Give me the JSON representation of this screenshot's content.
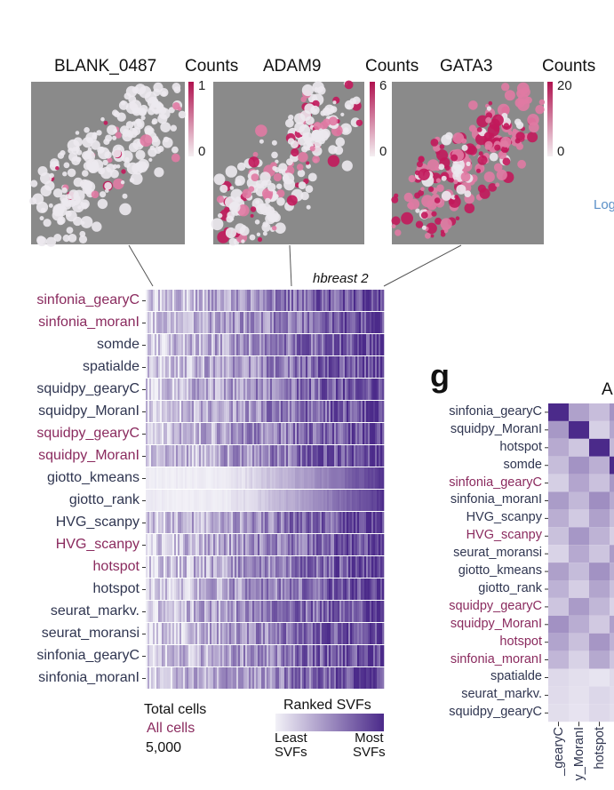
{
  "spatial_panels": [
    {
      "gene": "BLANK_0487",
      "legend_title": "Counts",
      "legend_max": "1",
      "legend_min": "0",
      "intensity": 0.05
    },
    {
      "gene": "ADAM9",
      "legend_title": "Counts",
      "legend_max": "6",
      "legend_min": "0",
      "intensity": 0.3
    },
    {
      "gene": "GATA3",
      "legend_title": "Counts",
      "legend_max": "20",
      "legend_min": "0",
      "intensity": 0.85
    }
  ],
  "colors": {
    "magenta": "#c2185b",
    "tissue_bg": "#8a8a8a",
    "purple_dark": "#4b2a8a",
    "purple_light": "#f2f1f7",
    "label_plum": "#8a2a5e",
    "label_navy": "#2f3550"
  },
  "heatmap": {
    "dataset": "hbreast 2",
    "rows": [
      {
        "label": "sinfonia_gearyC",
        "color": "plum"
      },
      {
        "label": "sinfonia_moranI",
        "color": "plum"
      },
      {
        "label": "somde",
        "color": "navy"
      },
      {
        "label": "spatialde",
        "color": "navy"
      },
      {
        "label": "squidpy_gearyC",
        "color": "navy"
      },
      {
        "label": "squidpy_MoranI",
        "color": "navy"
      },
      {
        "label": "squidpy_gearyC",
        "color": "plum"
      },
      {
        "label": "squidpy_MoranI",
        "color": "plum"
      },
      {
        "label": "giotto_kmeans",
        "color": "navy"
      },
      {
        "label": "giotto_rank",
        "color": "navy"
      },
      {
        "label": "HVG_scanpy",
        "color": "navy"
      },
      {
        "label": "HVG_scanpy",
        "color": "plum"
      },
      {
        "label": "hotspot",
        "color": "plum"
      },
      {
        "label": "hotspot",
        "color": "navy"
      },
      {
        "label": "seurat_markv.",
        "color": "navy"
      },
      {
        "label": "seurat_moransi",
        "color": "navy"
      },
      {
        "label": "sinfonia_gearyC",
        "color": "navy"
      },
      {
        "label": "sinfonia_moranI",
        "color": "navy"
      }
    ],
    "footer": {
      "total_cells": "Total cells",
      "all_cells": "All cells",
      "count": "5,000"
    },
    "legend": {
      "title": "Ranked SVFs",
      "least_1": "Least",
      "least_2": "SVFs",
      "most_1": "Most",
      "most_2": "SVFs"
    }
  },
  "panel_g": {
    "letter": "g",
    "title_fragment": "A",
    "rows": [
      {
        "label": "sinfonia_gearyC",
        "color": "navy"
      },
      {
        "label": "squidpy_MoranI",
        "color": "navy"
      },
      {
        "label": "hotspot",
        "color": "navy"
      },
      {
        "label": "somde",
        "color": "navy"
      },
      {
        "label": "sinfonia_gearyC",
        "color": "plum"
      },
      {
        "label": "sinfonia_moranI",
        "color": "navy"
      },
      {
        "label": "HVG_scanpy",
        "color": "navy"
      },
      {
        "label": "HVG_scanpy",
        "color": "plum"
      },
      {
        "label": "seurat_moransi",
        "color": "navy"
      },
      {
        "label": "giotto_kmeans",
        "color": "navy"
      },
      {
        "label": "giotto_rank",
        "color": "navy"
      },
      {
        "label": "squidpy_gearyC",
        "color": "plum"
      },
      {
        "label": "squidpy_MoranI",
        "color": "plum"
      },
      {
        "label": "hotspot",
        "color": "plum"
      },
      {
        "label": "sinfonia_moranI",
        "color": "plum"
      },
      {
        "label": "spatialde",
        "color": "navy"
      },
      {
        "label": "seurat_markv.",
        "color": "navy"
      },
      {
        "label": "squidpy_gearyC",
        "color": "navy"
      }
    ],
    "col_labels": [
      "_gearyC",
      "y_MoranI",
      "hotspot"
    ]
  },
  "side_fragment": "Log"
}
